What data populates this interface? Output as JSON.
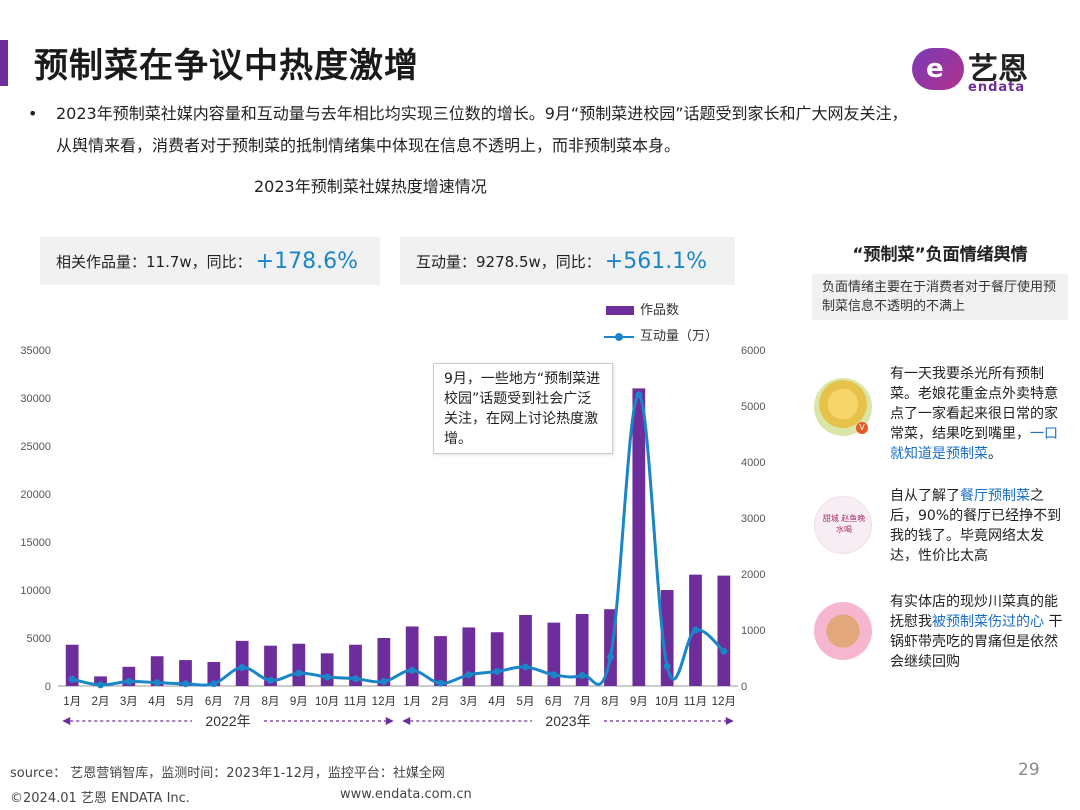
{
  "page": {
    "title": "预制菜在争议中热度激增",
    "bullet": "2023年预制菜社媒内容量和互动量与去年相比均实现三位数的增长。9月“预制菜进校园”话题受到家长和广大网友关注，从舆情来看，消费者对于预制菜的抵制情绪集中体现在信息不透明上，而非预制菜本身。",
    "chart_heading": "2023年预制菜社媒热度增速情况",
    "page_number": "29"
  },
  "logo": {
    "mark": "e",
    "cn": "艺恩",
    "en": "endata"
  },
  "stats": {
    "works_label": "相关作品量：11.7w，同比：",
    "works_value": "+178.6%",
    "inter_label": "互动量：9278.5w，同比：",
    "inter_value": "+561.1%"
  },
  "legend": {
    "bar": "作品数",
    "line": "互动量（万）"
  },
  "callout": "9月，一些地方“预制菜进校园”话题受到社会广泛关注，在网上讨论热度激增。",
  "panel": {
    "title": "“预制菜”负面情绪舆情",
    "subtitle": "负面情绪主要在于消费者对于餐厅使用预制菜信息不透明的不满上",
    "comments": [
      {
        "pre": "有一天我要杀光所有预制菜。老娘花重金点外卖特意点了一家看起来很日常的家常菜，结果吃到嘴里，",
        "highlight": "一口就知道是预制菜",
        "post": "。",
        "avatar_badge": "V"
      },
      {
        "pre": "自从了解了",
        "highlight": "餐厅预制菜",
        "post": "之后，90%的餐厅已经挣不到我的钱了。毕竟网络太发达，性价比太高",
        "avatar_text": "甜城 赵鱼晚水喝"
      },
      {
        "pre": "有实体店的现炒川菜真的能抚慰我",
        "highlight": "被预制菜伤过的心",
        "post": " 干锅虾带壳吃的胃痛但是依然会继续回购"
      }
    ]
  },
  "footer": {
    "source": "source： 艺恩营销智库，监测时间：2023年1-12月，监控平台：社媒全网",
    "copyright": "©2024.01  艺恩 ENDATA Inc.",
    "website": "www.endata.com.cn"
  },
  "colors": {
    "accent": "#6d2e9c",
    "bar": "#6d2e9c",
    "line": "#1a86c8",
    "highlight": "#1a6fc8"
  },
  "chart_data": {
    "type": "bar",
    "categories": [
      "1月",
      "2月",
      "3月",
      "4月",
      "5月",
      "6月",
      "7月",
      "8月",
      "9月",
      "10月",
      "11月",
      "12月",
      "1月",
      "2月",
      "3月",
      "4月",
      "5月",
      "6月",
      "7月",
      "8月",
      "9月",
      "10月",
      "11月",
      "12月"
    ],
    "groups": [
      {
        "label": "2022年",
        "from": 0,
        "to": 11
      },
      {
        "label": "2023年",
        "from": 12,
        "to": 23
      }
    ],
    "series": [
      {
        "name": "作品数",
        "type": "bar",
        "axis": "left",
        "values": [
          4300,
          1000,
          2000,
          3100,
          2700,
          2500,
          4700,
          4200,
          4400,
          3400,
          4300,
          5000,
          6200,
          5200,
          6100,
          5600,
          7400,
          6600,
          7500,
          8000,
          31000,
          10000,
          11600,
          11500
        ]
      },
      {
        "name": "互动量（万）",
        "type": "line",
        "axis": "right",
        "values": [
          120,
          20,
          80,
          60,
          40,
          40,
          330,
          100,
          230,
          160,
          130,
          80,
          280,
          50,
          200,
          260,
          340,
          200,
          190,
          520,
          5200,
          350,
          1000,
          620
        ]
      }
    ],
    "ylim": [
      0,
      35000
    ],
    "yticks": [
      0,
      5000,
      10000,
      15000,
      20000,
      25000,
      30000,
      35000
    ],
    "y2lim": [
      0,
      6000
    ],
    "y2ticks": [
      0,
      1000,
      2000,
      3000,
      4000,
      5000,
      6000
    ],
    "xlabel": "",
    "ylabel": "",
    "grid": false,
    "legend": "top-right"
  }
}
